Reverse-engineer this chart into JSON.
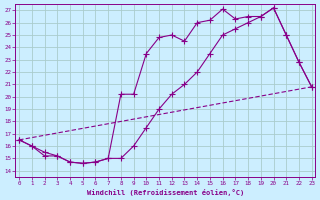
{
  "xlabel": "Windchill (Refroidissement éolien,°C)",
  "bg_color": "#cceeff",
  "line_color": "#880088",
  "grid_color": "#aacccc",
  "x_ticks": [
    0,
    1,
    2,
    3,
    4,
    5,
    6,
    7,
    8,
    9,
    10,
    11,
    12,
    13,
    14,
    15,
    16,
    17,
    18,
    19,
    20,
    21,
    22,
    23
  ],
  "y_ticks": [
    14,
    15,
    16,
    17,
    18,
    19,
    20,
    21,
    22,
    23,
    24,
    25,
    26,
    27
  ],
  "xlim": [
    -0.3,
    23.3
  ],
  "ylim": [
    13.5,
    27.5
  ],
  "line1_x": [
    0,
    1,
    2,
    3,
    4,
    5,
    6,
    7,
    8,
    9,
    10,
    11,
    12,
    13,
    14,
    15,
    16,
    17,
    18,
    19,
    20,
    21,
    22,
    23
  ],
  "line1_y": [
    16.5,
    16.0,
    15.5,
    15.2,
    14.7,
    14.6,
    14.7,
    15.0,
    20.2,
    20.2,
    23.5,
    24.8,
    25.0,
    24.5,
    26.0,
    26.2,
    27.1,
    26.3,
    26.5,
    26.5,
    27.2,
    25.0,
    22.8,
    20.8
  ],
  "line2_x": [
    0,
    1,
    2,
    3,
    4,
    5,
    6,
    7,
    8,
    9,
    10,
    11,
    12,
    13,
    14,
    15,
    16,
    17,
    18,
    19,
    20,
    21,
    22,
    23
  ],
  "line2_y": [
    16.5,
    16.0,
    15.2,
    15.2,
    14.7,
    14.6,
    14.7,
    15.0,
    15.0,
    16.0,
    17.5,
    19.0,
    20.2,
    21.0,
    22.0,
    23.5,
    25.0,
    25.5,
    26.0,
    26.5,
    27.2,
    25.0,
    22.8,
    20.8
  ],
  "line3_x": [
    0,
    23
  ],
  "line3_y": [
    16.5,
    20.8
  ]
}
